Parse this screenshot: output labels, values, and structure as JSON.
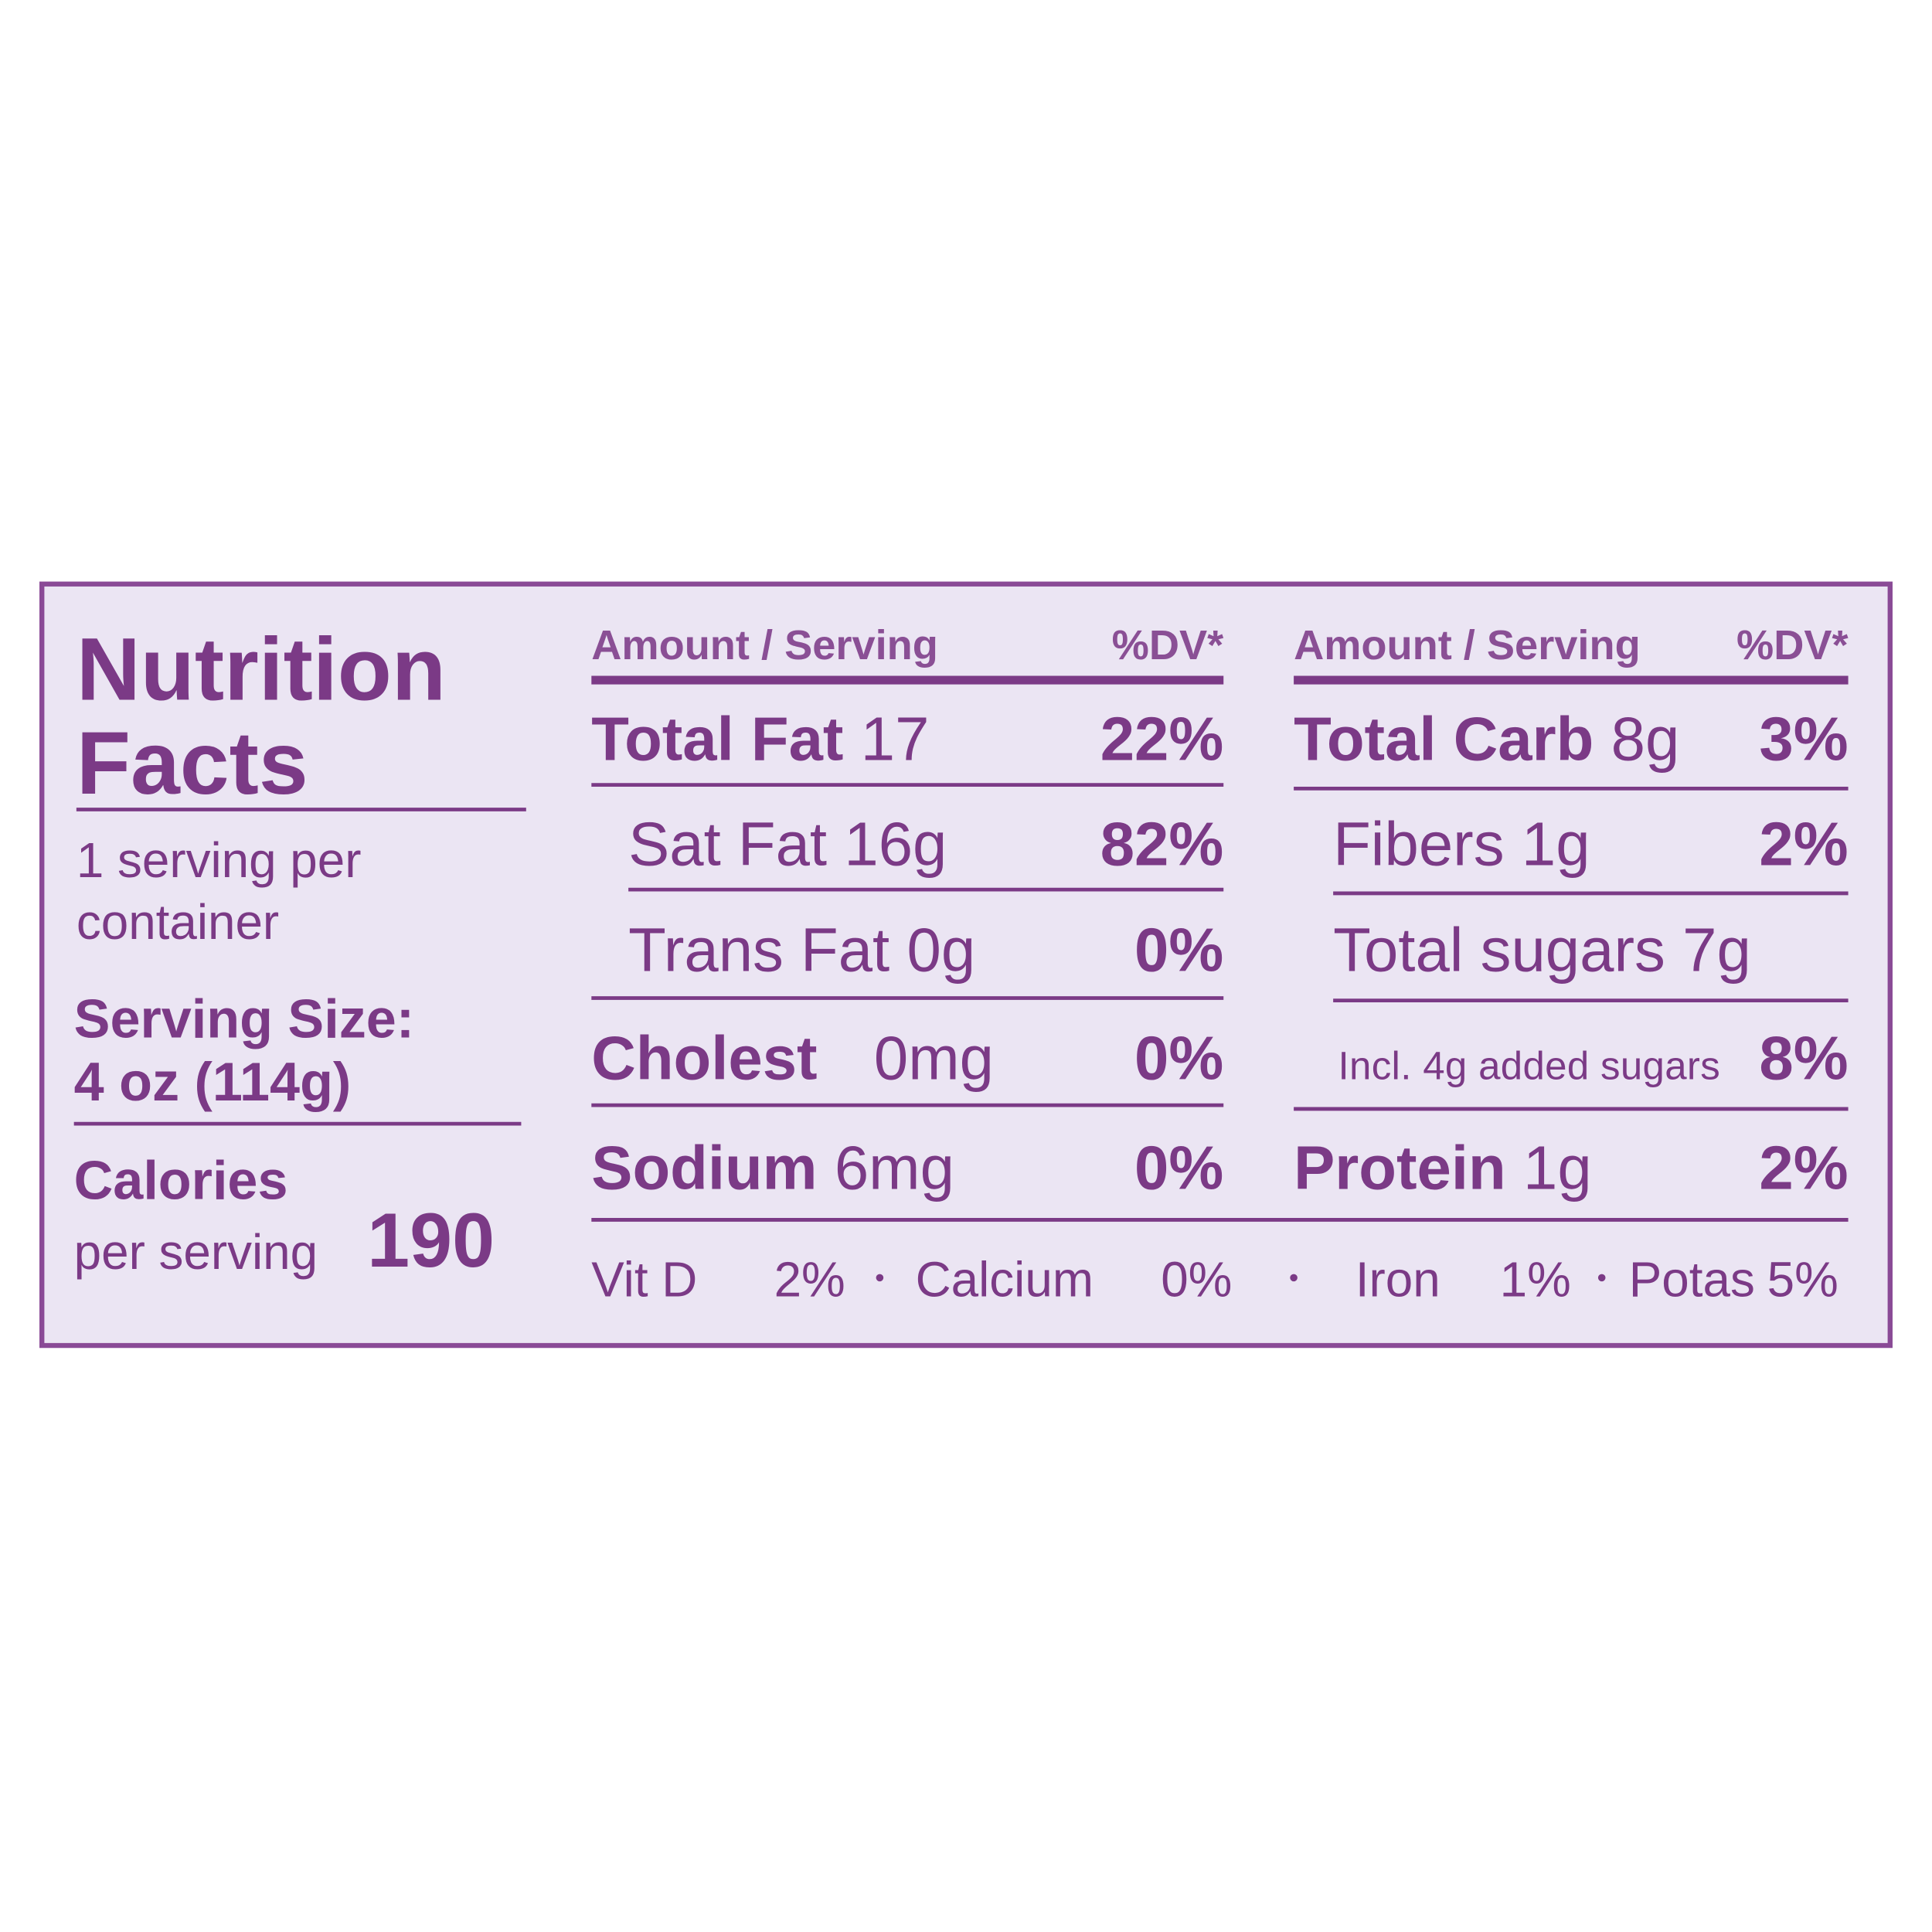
{
  "title_lines": [
    "Nutrition",
    "Facts"
  ],
  "servings_lines": [
    "1 serving per",
    "container"
  ],
  "serving_size": {
    "label": "Serving Size:",
    "value": "4 oz (114g)"
  },
  "calories": {
    "label": "Calories",
    "sublabel": "per serving",
    "value": 190
  },
  "columns": [
    {
      "header": {
        "amount": "Amount / Serving",
        "dv": "%DV*"
      },
      "rows": [
        {
          "name": "Total Fat",
          "amount": "17",
          "dv": "22%"
        },
        {
          "name": "Sat Fat",
          "amount": "16g",
          "dv": "82%"
        },
        {
          "name": "Trans Fat",
          "amount": "0g",
          "dv": "0%"
        },
        {
          "name": "Cholest",
          "amount": "0mg",
          "dv": "0%"
        },
        {
          "name": "Sodium",
          "amount": "6mg",
          "dv": "0%"
        }
      ]
    },
    {
      "header": {
        "amount": "Amount / Serving",
        "dv": "%DV*"
      },
      "rows": [
        {
          "name": "Total Carb",
          "amount": "8g",
          "dv": "3%"
        },
        {
          "name": "Fibers",
          "amount": "1g",
          "dv": "2%"
        },
        {
          "name": "Total sugars",
          "amount": "7g"
        },
        {
          "name": "Incl. 4g added sugars",
          "dv": "8%"
        },
        {
          "name": "Protein",
          "amount": "1g",
          "dv": "2%"
        }
      ]
    }
  ],
  "vitamins": [
    {
      "name": "Vit D",
      "dv": "2%"
    },
    {
      "name": "Calcium",
      "dv": "0%"
    },
    {
      "name": "Iron",
      "dv": "1%"
    },
    {
      "name": "Potas",
      "dv": "5%"
    }
  ]
}
